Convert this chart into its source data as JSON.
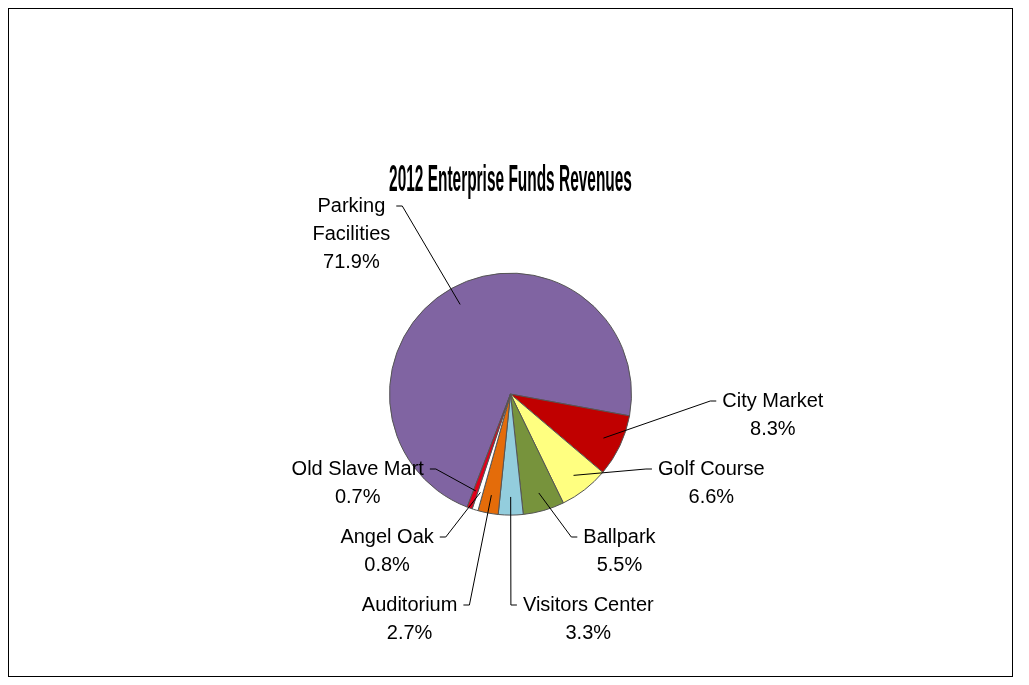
{
  "chart_data": {
    "type": "pie",
    "title": "2012 Enterprise Funds Revenues",
    "categories": [
      "Parking Facilities",
      "City Market",
      "Golf Course",
      "Ballpark",
      "Visitors Center",
      "Auditorium",
      "Angel Oak",
      "Old Slave Mart"
    ],
    "values": [
      71.9,
      8.3,
      6.6,
      5.5,
      3.3,
      2.7,
      0.8,
      0.7
    ],
    "colors": [
      "#8064a2",
      "#c00000",
      "#ffff80",
      "#77933c",
      "#93cddd",
      "#e46c0a",
      "#ffffff",
      "#e0001b"
    ],
    "value_labels": [
      "71.9%",
      "8.3%",
      "6.6%",
      "5.5%",
      "3.3%",
      "2.7%",
      "0.8%",
      "0.7%"
    ],
    "legend": false
  }
}
